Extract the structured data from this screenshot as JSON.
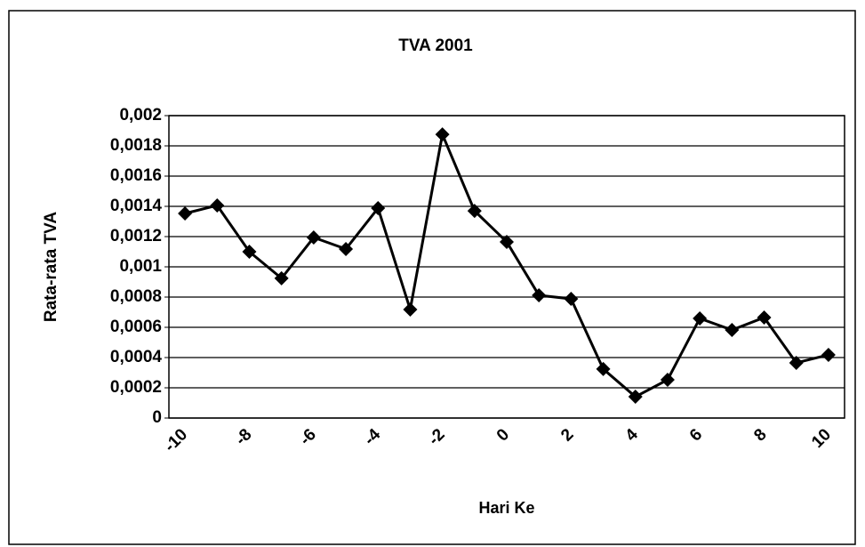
{
  "chart_data": {
    "type": "line",
    "title": "TVA 2001",
    "x_label": "Hari Ke",
    "y_label": "Rata-rata TVA",
    "categories": [
      -10,
      null,
      -8,
      null,
      -6,
      null,
      -4,
      null,
      -2,
      null,
      0,
      null,
      2,
      null,
      4,
      null,
      6,
      null,
      8,
      null,
      10
    ],
    "series": [
      {
        "name": "TVA",
        "color": "#000000",
        "values": [
          0.001353,
          0.001406,
          0.0011,
          0.000924,
          0.001194,
          0.001118,
          0.001388,
          0.000718,
          0.001876,
          0.00137,
          0.001165,
          0.000812,
          0.000788,
          0.000324,
          0.000141,
          0.000253,
          0.000659,
          0.000582,
          0.000665,
          0.000365,
          0.000418
        ]
      }
    ],
    "ylim": [
      0,
      0.002
    ],
    "yticks": [
      0,
      {
        "value": 0.0002,
        "label": "0,0002"
      },
      {
        "value": 0.0004,
        "label": "0,0004"
      },
      {
        "value": 0.0006,
        "label": "0,0006"
      },
      {
        "value": 0.0008,
        "label": "0,0008"
      },
      {
        "value": 0.001,
        "label": "0,001"
      },
      {
        "value": 0.0012,
        "label": "0,0012"
      },
      {
        "value": 0.0014,
        "label": "0,0014"
      },
      {
        "value": 0.0016,
        "label": "0,0016"
      },
      {
        "value": 0.0018,
        "label": "0,0018"
      },
      {
        "value": 0.002,
        "label": "0,002"
      }
    ],
    "grid": true
  }
}
